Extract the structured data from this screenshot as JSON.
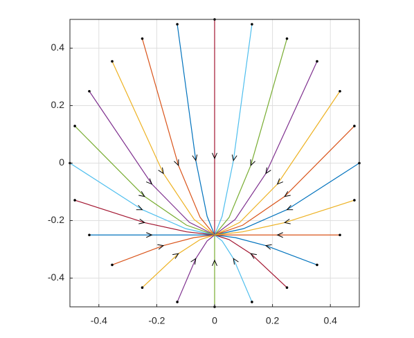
{
  "chart_data": {
    "type": "trajectories",
    "xlim": [
      -0.5,
      0.5
    ],
    "ylim": [
      -0.5,
      0.5
    ],
    "xticks": [
      -0.4,
      -0.2,
      0,
      0.2,
      0.4
    ],
    "yticks": [
      -0.4,
      -0.2,
      0,
      0.2,
      0.4
    ],
    "grid": true,
    "series": [
      {
        "color": "#0072BD",
        "x": [
          0.5,
          0.25,
          0.1,
          0
        ],
        "y": [
          0,
          -0.162,
          -0.228,
          -0.25
        ]
      },
      {
        "color": "#D95319",
        "x": [
          0.483,
          0.242,
          0.097,
          0
        ],
        "y": [
          0.129,
          -0.116,
          -0.216,
          -0.25
        ]
      },
      {
        "color": "#EDB120",
        "x": [
          0.433,
          0.217,
          0.087,
          0
        ],
        "y": [
          0.25,
          -0.073,
          -0.206,
          -0.25
        ]
      },
      {
        "color": "#7E2F8E",
        "x": [
          0.354,
          0.177,
          0.071,
          0
        ],
        "y": [
          0.354,
          -0.036,
          -0.196,
          -0.25
        ]
      },
      {
        "color": "#77AC30",
        "x": [
          0.25,
          0.125,
          0.05,
          0
        ],
        "y": [
          0.433,
          -0.008,
          -0.189,
          -0.25
        ]
      },
      {
        "color": "#4DBEEE",
        "x": [
          0.129,
          0.065,
          0.026,
          0
        ],
        "y": [
          0.483,
          0.009,
          -0.185,
          -0.25
        ]
      },
      {
        "color": "#A2142F",
        "x": [
          0,
          0,
          0,
          0
        ],
        "y": [
          0.5,
          0.016,
          -0.183,
          -0.25
        ]
      },
      {
        "color": "#0072BD",
        "x": [
          -0.129,
          -0.065,
          -0.026,
          0
        ],
        "y": [
          0.483,
          0.009,
          -0.185,
          -0.25
        ]
      },
      {
        "color": "#D95319",
        "x": [
          -0.25,
          -0.125,
          -0.05,
          0
        ],
        "y": [
          0.433,
          -0.008,
          -0.189,
          -0.25
        ]
      },
      {
        "color": "#EDB120",
        "x": [
          -0.354,
          -0.177,
          -0.071,
          0
        ],
        "y": [
          0.354,
          -0.036,
          -0.196,
          -0.25
        ]
      },
      {
        "color": "#7E2F8E",
        "x": [
          -0.433,
          -0.217,
          -0.087,
          0
        ],
        "y": [
          0.25,
          -0.073,
          -0.206,
          -0.25
        ]
      },
      {
        "color": "#77AC30",
        "x": [
          -0.483,
          -0.242,
          -0.097,
          0
        ],
        "y": [
          0.129,
          -0.116,
          -0.216,
          -0.25
        ]
      },
      {
        "color": "#4DBEEE",
        "x": [
          -0.5,
          -0.25,
          -0.1,
          0
        ],
        "y": [
          0,
          -0.162,
          -0.228,
          -0.25
        ]
      },
      {
        "color": "#A2142F",
        "x": [
          -0.483,
          -0.242,
          -0.097,
          0
        ],
        "y": [
          -0.129,
          -0.207,
          -0.239,
          -0.25
        ]
      },
      {
        "color": "#0072BD",
        "x": [
          -0.433,
          -0.217,
          -0.087,
          0
        ],
        "y": [
          -0.25,
          -0.25,
          -0.25,
          -0.25
        ]
      },
      {
        "color": "#D95319",
        "x": [
          -0.354,
          -0.177,
          -0.071,
          0
        ],
        "y": [
          -0.354,
          -0.287,
          -0.259,
          -0.25
        ]
      },
      {
        "color": "#EDB120",
        "x": [
          -0.25,
          -0.125,
          -0.05,
          0
        ],
        "y": [
          -0.433,
          -0.315,
          -0.266,
          -0.25
        ]
      },
      {
        "color": "#7E2F8E",
        "x": [
          -0.129,
          -0.065,
          -0.026,
          0
        ],
        "y": [
          -0.483,
          -0.332,
          -0.271,
          -0.25
        ]
      },
      {
        "color": "#77AC30",
        "x": [
          0,
          0,
          0,
          0
        ],
        "y": [
          -0.5,
          -0.338,
          -0.272,
          -0.25
        ]
      },
      {
        "color": "#4DBEEE",
        "x": [
          0.129,
          0.065,
          0.026,
          0
        ],
        "y": [
          -0.483,
          -0.332,
          -0.271,
          -0.25
        ]
      },
      {
        "color": "#A2142F",
        "x": [
          0.25,
          0.125,
          0.05,
          0
        ],
        "y": [
          -0.433,
          -0.315,
          -0.266,
          -0.25
        ]
      },
      {
        "color": "#0072BD",
        "x": [
          0.354,
          0.177,
          0.071,
          0
        ],
        "y": [
          -0.354,
          -0.287,
          -0.259,
          -0.25
        ]
      },
      {
        "color": "#D95319",
        "x": [
          0.433,
          0.217,
          0.087,
          0
        ],
        "y": [
          -0.25,
          -0.25,
          -0.25,
          -0.25
        ]
      },
      {
        "color": "#EDB120",
        "x": [
          0.483,
          0.242,
          0.097,
          0
        ],
        "y": [
          -0.129,
          -0.207,
          -0.239,
          -0.25
        ]
      }
    ]
  }
}
